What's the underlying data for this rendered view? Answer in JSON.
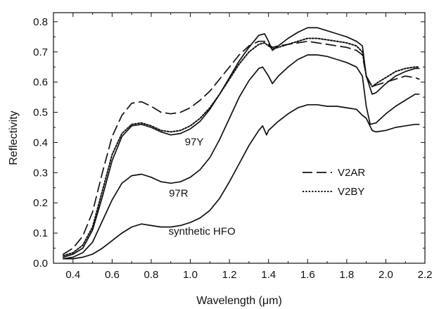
{
  "chart_data": {
    "type": "line",
    "title": "",
    "xlabel": "Wavelength (μm)",
    "ylabel": "Reflectivity",
    "xlim": [
      0.3,
      2.2
    ],
    "ylim": [
      0.0,
      0.83
    ],
    "x_ticks": [
      0.4,
      0.6,
      0.8,
      1.0,
      1.2,
      1.4,
      1.6,
      1.8,
      2.0,
      2.2
    ],
    "y_ticks": [
      0.0,
      0.1,
      0.2,
      0.3,
      0.4,
      0.5,
      0.6,
      0.7,
      0.8
    ],
    "grid": false,
    "legend": {
      "placement": "right-middle",
      "entries": [
        {
          "label": "V2AR",
          "series": "V2AR"
        },
        {
          "label": "V2BY",
          "series": "V2BY"
        }
      ]
    },
    "annotations": [
      {
        "text": "97Y",
        "x": 1.02,
        "y": 0.39
      },
      {
        "text": "97R",
        "x": 0.94,
        "y": 0.22
      },
      {
        "text": "synthetic HFO",
        "x": 1.06,
        "y": 0.095
      }
    ],
    "series": [
      {
        "name": "V2AR",
        "style": "dashed",
        "color": "#111111",
        "points": [
          [
            0.35,
            0.03
          ],
          [
            0.4,
            0.05
          ],
          [
            0.45,
            0.09
          ],
          [
            0.5,
            0.17
          ],
          [
            0.55,
            0.3
          ],
          [
            0.6,
            0.42
          ],
          [
            0.65,
            0.49
          ],
          [
            0.7,
            0.53
          ],
          [
            0.75,
            0.535
          ],
          [
            0.8,
            0.52
          ],
          [
            0.85,
            0.5
          ],
          [
            0.9,
            0.495
          ],
          [
            0.95,
            0.5
          ],
          [
            1.0,
            0.515
          ],
          [
            1.05,
            0.54
          ],
          [
            1.1,
            0.57
          ],
          [
            1.15,
            0.61
          ],
          [
            1.2,
            0.65
          ],
          [
            1.25,
            0.69
          ],
          [
            1.3,
            0.72
          ],
          [
            1.35,
            0.735
          ],
          [
            1.38,
            0.735
          ],
          [
            1.4,
            0.725
          ],
          [
            1.42,
            0.715
          ],
          [
            1.45,
            0.72
          ],
          [
            1.5,
            0.725
          ],
          [
            1.55,
            0.73
          ],
          [
            1.6,
            0.735
          ],
          [
            1.65,
            0.73
          ],
          [
            1.7,
            0.725
          ],
          [
            1.75,
            0.72
          ],
          [
            1.8,
            0.715
          ],
          [
            1.85,
            0.705
          ],
          [
            1.88,
            0.69
          ],
          [
            1.9,
            0.62
          ],
          [
            1.93,
            0.585
          ],
          [
            1.95,
            0.59
          ],
          [
            2.0,
            0.6
          ],
          [
            2.05,
            0.61
          ],
          [
            2.1,
            0.62
          ],
          [
            2.15,
            0.615
          ],
          [
            2.17,
            0.61
          ]
        ]
      },
      {
        "name": "V2BY",
        "style": "dotted",
        "color": "#111111",
        "points": [
          [
            0.35,
            0.025
          ],
          [
            0.4,
            0.035
          ],
          [
            0.45,
            0.06
          ],
          [
            0.5,
            0.12
          ],
          [
            0.55,
            0.24
          ],
          [
            0.6,
            0.36
          ],
          [
            0.65,
            0.43
          ],
          [
            0.7,
            0.46
          ],
          [
            0.75,
            0.465
          ],
          [
            0.8,
            0.455
          ],
          [
            0.85,
            0.44
          ],
          [
            0.9,
            0.435
          ],
          [
            0.95,
            0.44
          ],
          [
            1.0,
            0.455
          ],
          [
            1.05,
            0.48
          ],
          [
            1.1,
            0.515
          ],
          [
            1.15,
            0.56
          ],
          [
            1.2,
            0.61
          ],
          [
            1.25,
            0.66
          ],
          [
            1.3,
            0.7
          ],
          [
            1.35,
            0.725
          ],
          [
            1.38,
            0.73
          ],
          [
            1.4,
            0.72
          ],
          [
            1.42,
            0.71
          ],
          [
            1.45,
            0.715
          ],
          [
            1.5,
            0.725
          ],
          [
            1.55,
            0.735
          ],
          [
            1.6,
            0.745
          ],
          [
            1.65,
            0.745
          ],
          [
            1.7,
            0.74
          ],
          [
            1.75,
            0.735
          ],
          [
            1.8,
            0.73
          ],
          [
            1.85,
            0.72
          ],
          [
            1.88,
            0.7
          ],
          [
            1.9,
            0.62
          ],
          [
            1.93,
            0.585
          ],
          [
            1.95,
            0.595
          ],
          [
            2.0,
            0.615
          ],
          [
            2.05,
            0.635
          ],
          [
            2.1,
            0.645
          ],
          [
            2.15,
            0.65
          ],
          [
            2.17,
            0.65
          ]
        ]
      },
      {
        "name": "97Y",
        "style": "solid",
        "color": "#111111",
        "points": [
          [
            0.35,
            0.02
          ],
          [
            0.4,
            0.03
          ],
          [
            0.45,
            0.05
          ],
          [
            0.5,
            0.11
          ],
          [
            0.55,
            0.22
          ],
          [
            0.6,
            0.34
          ],
          [
            0.65,
            0.42
          ],
          [
            0.7,
            0.455
          ],
          [
            0.75,
            0.46
          ],
          [
            0.8,
            0.45
          ],
          [
            0.85,
            0.435
          ],
          [
            0.9,
            0.425
          ],
          [
            0.95,
            0.43
          ],
          [
            1.0,
            0.445
          ],
          [
            1.05,
            0.47
          ],
          [
            1.1,
            0.51
          ],
          [
            1.15,
            0.56
          ],
          [
            1.2,
            0.615
          ],
          [
            1.25,
            0.67
          ],
          [
            1.3,
            0.715
          ],
          [
            1.35,
            0.755
          ],
          [
            1.38,
            0.76
          ],
          [
            1.4,
            0.735
          ],
          [
            1.42,
            0.705
          ],
          [
            1.45,
            0.72
          ],
          [
            1.5,
            0.745
          ],
          [
            1.55,
            0.765
          ],
          [
            1.6,
            0.78
          ],
          [
            1.65,
            0.78
          ],
          [
            1.7,
            0.77
          ],
          [
            1.75,
            0.76
          ],
          [
            1.8,
            0.75
          ],
          [
            1.85,
            0.735
          ],
          [
            1.88,
            0.72
          ],
          [
            1.9,
            0.62
          ],
          [
            1.93,
            0.56
          ],
          [
            1.95,
            0.565
          ],
          [
            2.0,
            0.595
          ],
          [
            2.05,
            0.62
          ],
          [
            2.1,
            0.635
          ],
          [
            2.15,
            0.645
          ],
          [
            2.17,
            0.645
          ]
        ]
      },
      {
        "name": "97R",
        "style": "solid",
        "color": "#111111",
        "points": [
          [
            0.35,
            0.015
          ],
          [
            0.4,
            0.02
          ],
          [
            0.45,
            0.035
          ],
          [
            0.5,
            0.07
          ],
          [
            0.55,
            0.14
          ],
          [
            0.6,
            0.21
          ],
          [
            0.65,
            0.265
          ],
          [
            0.7,
            0.29
          ],
          [
            0.75,
            0.295
          ],
          [
            0.8,
            0.285
          ],
          [
            0.85,
            0.27
          ],
          [
            0.9,
            0.265
          ],
          [
            0.95,
            0.27
          ],
          [
            1.0,
            0.285
          ],
          [
            1.05,
            0.31
          ],
          [
            1.1,
            0.35
          ],
          [
            1.15,
            0.41
          ],
          [
            1.2,
            0.48
          ],
          [
            1.25,
            0.55
          ],
          [
            1.3,
            0.605
          ],
          [
            1.35,
            0.645
          ],
          [
            1.37,
            0.65
          ],
          [
            1.4,
            0.62
          ],
          [
            1.42,
            0.595
          ],
          [
            1.45,
            0.62
          ],
          [
            1.5,
            0.65
          ],
          [
            1.55,
            0.675
          ],
          [
            1.6,
            0.69
          ],
          [
            1.65,
            0.69
          ],
          [
            1.7,
            0.685
          ],
          [
            1.75,
            0.675
          ],
          [
            1.8,
            0.665
          ],
          [
            1.85,
            0.65
          ],
          [
            1.88,
            0.62
          ],
          [
            1.9,
            0.52
          ],
          [
            1.92,
            0.46
          ],
          [
            1.95,
            0.465
          ],
          [
            2.0,
            0.495
          ],
          [
            2.05,
            0.52
          ],
          [
            2.1,
            0.54
          ],
          [
            2.15,
            0.56
          ],
          [
            2.17,
            0.56
          ]
        ]
      },
      {
        "name": "synthetic HFO",
        "style": "solid",
        "color": "#111111",
        "points": [
          [
            0.35,
            0.015
          ],
          [
            0.4,
            0.015
          ],
          [
            0.45,
            0.02
          ],
          [
            0.5,
            0.03
          ],
          [
            0.55,
            0.05
          ],
          [
            0.6,
            0.075
          ],
          [
            0.65,
            0.1
          ],
          [
            0.7,
            0.12
          ],
          [
            0.75,
            0.13
          ],
          [
            0.8,
            0.125
          ],
          [
            0.85,
            0.12
          ],
          [
            0.9,
            0.12
          ],
          [
            0.95,
            0.125
          ],
          [
            1.0,
            0.135
          ],
          [
            1.05,
            0.15
          ],
          [
            1.1,
            0.175
          ],
          [
            1.15,
            0.215
          ],
          [
            1.2,
            0.27
          ],
          [
            1.25,
            0.33
          ],
          [
            1.3,
            0.39
          ],
          [
            1.35,
            0.44
          ],
          [
            1.37,
            0.455
          ],
          [
            1.39,
            0.425
          ],
          [
            1.4,
            0.44
          ],
          [
            1.45,
            0.47
          ],
          [
            1.5,
            0.495
          ],
          [
            1.55,
            0.515
          ],
          [
            1.6,
            0.525
          ],
          [
            1.65,
            0.525
          ],
          [
            1.7,
            0.52
          ],
          [
            1.75,
            0.52
          ],
          [
            1.8,
            0.515
          ],
          [
            1.85,
            0.51
          ],
          [
            1.88,
            0.49
          ],
          [
            1.9,
            0.48
          ],
          [
            1.93,
            0.44
          ],
          [
            1.95,
            0.435
          ],
          [
            2.0,
            0.44
          ],
          [
            2.05,
            0.45
          ],
          [
            2.1,
            0.455
          ],
          [
            2.15,
            0.46
          ],
          [
            2.17,
            0.46
          ]
        ]
      }
    ]
  }
}
